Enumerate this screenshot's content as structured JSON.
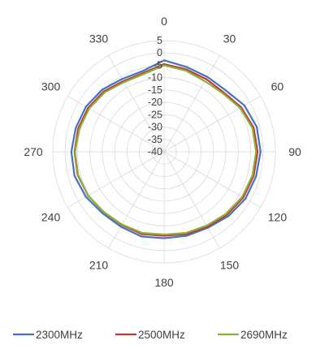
{
  "chart_data": {
    "type": "radar",
    "title": "",
    "angle_ticks": [
      "0",
      "30",
      "60",
      "90",
      "120",
      "150",
      "180",
      "210",
      "240",
      "270",
      "300",
      "330"
    ],
    "angle_values": [
      0,
      30,
      60,
      90,
      120,
      150,
      180,
      210,
      240,
      270,
      300,
      330
    ],
    "radial_ticks": [
      "5",
      "0",
      "-5",
      "-10",
      "-15",
      "-20",
      "-25",
      "-30",
      "-35",
      "-40"
    ],
    "radial_values": [
      5,
      0,
      -5,
      -10,
      -15,
      -20,
      -25,
      -30,
      -35,
      -40
    ],
    "rlim": [
      -40,
      5
    ],
    "grid": true,
    "legend_position": "bottom",
    "series": [
      {
        "name": "2300MHz",
        "color": "#4472C4",
        "angles": [
          0,
          15,
          30,
          45,
          60,
          75,
          90,
          105,
          120,
          135,
          150,
          165,
          180,
          195,
          210,
          225,
          240,
          255,
          270,
          285,
          300,
          315,
          330,
          345
        ],
        "values": [
          -3,
          -4.5,
          -5,
          -4.8,
          -2.5,
          -1.2,
          -1,
          -1.5,
          -2,
          -3.2,
          -4.5,
          -4.8,
          -5,
          -4.5,
          -5,
          -4.8,
          -3.5,
          -2.5,
          -2.5,
          -3,
          -3.5,
          -4.5,
          -6,
          -6.2
        ]
      },
      {
        "name": "2500MHz",
        "color": "#C0392B",
        "angles": [
          0,
          15,
          30,
          45,
          60,
          75,
          90,
          105,
          120,
          135,
          150,
          165,
          180,
          195,
          210,
          225,
          240,
          255,
          270,
          285,
          300,
          315,
          330,
          345
        ],
        "values": [
          -4.5,
          -5.5,
          -6,
          -6,
          -4,
          -2.5,
          -2.2,
          -2.5,
          -3,
          -4,
          -5,
          -5.5,
          -6,
          -5.5,
          -5.8,
          -5.5,
          -4.5,
          -3.8,
          -3.8,
          -4,
          -4.5,
          -5.5,
          -7,
          -7
        ]
      },
      {
        "name": "2690MHz",
        "color": "#8DB03C",
        "angles": [
          0,
          15,
          30,
          45,
          60,
          75,
          90,
          105,
          120,
          135,
          150,
          165,
          180,
          195,
          210,
          225,
          240,
          255,
          270,
          285,
          300,
          315,
          330,
          345
        ],
        "values": [
          -5,
          -6,
          -7,
          -6.5,
          -4.5,
          -3,
          -2.8,
          -3,
          -3.5,
          -4.5,
          -5.5,
          -6,
          -6.5,
          -6,
          -6,
          -5.5,
          -4.5,
          -4,
          -4,
          -4.5,
          -5,
          -6,
          -7.5,
          -7.5
        ]
      }
    ]
  }
}
